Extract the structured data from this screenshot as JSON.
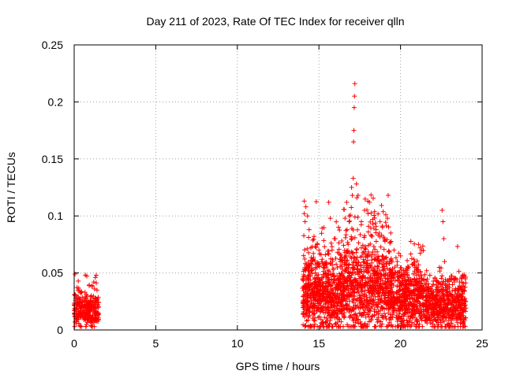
{
  "chart_data": {
    "type": "scatter",
    "title": "Day 211 of 2023, Rate Of TEC Index for receiver qlln",
    "xlabel": "GPS time / hours",
    "ylabel": "ROTI / TECUs",
    "xlim": [
      0,
      25
    ],
    "ylim": [
      0,
      0.25
    ],
    "xticks": [
      0,
      5,
      10,
      15,
      20,
      25
    ],
    "xtick_labels": [
      "0",
      "5",
      "10",
      "15",
      "20",
      "25"
    ],
    "yticks": [
      0,
      0.05,
      0.1,
      0.15,
      0.2,
      0.25
    ],
    "ytick_labels": [
      "0",
      "0.05",
      "0.1",
      "0.15",
      "0.2",
      "0.25"
    ],
    "grid": true,
    "marker": "+",
    "color": "#ff0000",
    "series": [
      {
        "name": "ROTI",
        "points": [
          [
            0.05,
            0.049
          ],
          [
            0.1,
            0.018
          ],
          [
            0.15,
            0.012
          ],
          [
            0.2,
            0.025
          ],
          [
            0.25,
            0.015
          ],
          [
            0.3,
            0.022
          ],
          [
            0.35,
            0.034
          ],
          [
            0.4,
            0.011
          ],
          [
            0.45,
            0.02
          ],
          [
            0.5,
            0.013
          ],
          [
            0.55,
            0.016
          ],
          [
            0.6,
            0.009
          ],
          [
            0.65,
            0.014
          ],
          [
            0.7,
            0.021
          ],
          [
            0.75,
            0.012
          ],
          [
            0.8,
            0.018
          ],
          [
            0.85,
            0.01
          ],
          [
            0.9,
            0.015
          ],
          [
            0.95,
            0.024
          ],
          [
            1.0,
            0.017
          ],
          [
            1.05,
            0.03
          ],
          [
            1.1,
            0.038
          ],
          [
            1.15,
            0.028
          ],
          [
            1.2,
            0.042
          ],
          [
            1.25,
            0.036
          ],
          [
            1.3,
            0.046
          ],
          [
            1.35,
            0.048
          ],
          [
            1.4,
            0.035
          ],
          [
            1.45,
            0.022
          ],
          [
            0.2,
            0.011
          ],
          [
            0.5,
            0.022
          ],
          [
            0.8,
            0.009
          ],
          [
            1.1,
            0.02
          ],
          [
            1.3,
            0.014
          ],
          [
            14.1,
            0.113
          ],
          [
            14.1,
            0.102
          ],
          [
            14.15,
            0.095
          ],
          [
            14.2,
            0.108
          ],
          [
            14.3,
            0.1
          ],
          [
            14.4,
            0.088
          ],
          [
            14.5,
            0.072
          ],
          [
            14.6,
            0.06
          ],
          [
            14.7,
            0.082
          ],
          [
            14.8,
            0.055
          ],
          [
            15.0,
            0.07
          ],
          [
            15.2,
            0.062
          ],
          [
            15.4,
            0.058
          ],
          [
            15.6,
            0.112
          ],
          [
            15.7,
            0.098
          ],
          [
            15.8,
            0.073
          ],
          [
            16.0,
            0.08
          ],
          [
            16.2,
            0.09
          ],
          [
            16.4,
            0.078
          ],
          [
            16.6,
            0.098
          ],
          [
            16.7,
            0.112
          ],
          [
            16.85,
            0.095
          ],
          [
            17.0,
            0.125
          ],
          [
            17.1,
            0.133
          ],
          [
            17.12,
            0.165
          ],
          [
            17.14,
            0.175
          ],
          [
            17.16,
            0.195
          ],
          [
            17.18,
            0.205
          ],
          [
            17.2,
            0.216
          ],
          [
            17.3,
            0.128
          ],
          [
            17.4,
            0.118
          ],
          [
            17.6,
            0.095
          ],
          [
            17.8,
            0.105
          ],
          [
            18.0,
            0.113
          ],
          [
            18.1,
            0.112
          ],
          [
            18.3,
            0.097
          ],
          [
            18.5,
            0.088
          ],
          [
            18.7,
            0.085
          ],
          [
            18.9,
            0.09
          ],
          [
            19.0,
            0.08
          ],
          [
            19.1,
            0.101
          ],
          [
            19.2,
            0.098
          ],
          [
            19.4,
            0.085
          ],
          [
            19.6,
            0.07
          ],
          [
            19.8,
            0.06
          ],
          [
            20.0,
            0.065
          ],
          [
            20.2,
            0.048
          ],
          [
            20.5,
            0.055
          ],
          [
            20.8,
            0.058
          ],
          [
            21.0,
            0.05
          ],
          [
            21.1,
            0.075
          ],
          [
            21.2,
            0.072
          ],
          [
            21.3,
            0.07
          ],
          [
            21.6,
            0.052
          ],
          [
            21.8,
            0.048
          ],
          [
            22.0,
            0.04
          ],
          [
            22.3,
            0.038
          ],
          [
            22.55,
            0.105
          ],
          [
            22.6,
            0.095
          ],
          [
            22.65,
            0.08
          ],
          [
            22.7,
            0.06
          ],
          [
            23.0,
            0.045
          ],
          [
            23.3,
            0.042
          ],
          [
            23.6,
            0.03
          ],
          [
            23.8,
            0.048
          ],
          [
            23.9,
            0.035
          ],
          [
            24.0,
            0.025
          ]
        ]
      }
    ]
  }
}
